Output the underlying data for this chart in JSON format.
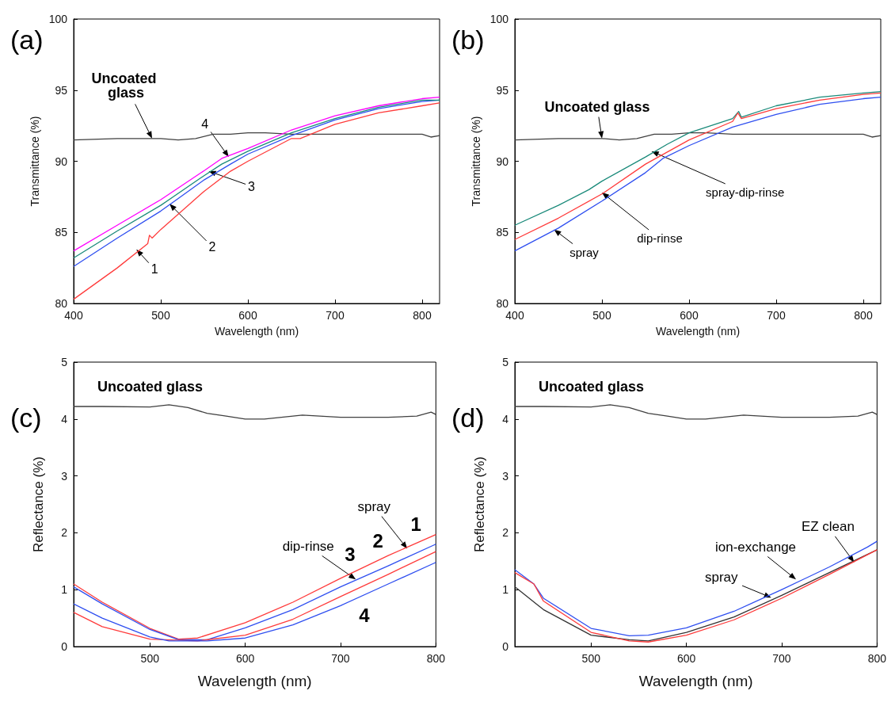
{
  "chart_data": [
    {
      "type": "line",
      "title": "(a)",
      "xlabel": "Wavelength (nm)",
      "ylabel": "Transmittance (%)",
      "xlim": [
        400,
        820
      ],
      "xticks": [
        400,
        500,
        600,
        700,
        800
      ],
      "ylim": [
        80,
        100
      ],
      "yticks": [
        80,
        85,
        90,
        95,
        100
      ],
      "marker": "none",
      "series": [
        {
          "color": "#404040",
          "x": [
            400,
            450,
            490,
            500,
            520,
            540,
            560,
            580,
            600,
            620,
            650,
            680,
            700,
            750,
            800,
            810,
            820
          ],
          "values": [
            91.5,
            91.6,
            91.6,
            91.6,
            91.5,
            91.6,
            91.9,
            91.9,
            92.0,
            92.0,
            91.9,
            91.9,
            91.9,
            91.9,
            91.9,
            91.7,
            91.8
          ]
        },
        {
          "color": "#ff3b3b",
          "x": [
            400,
            450,
            485,
            487,
            490,
            500,
            550,
            580,
            600,
            650,
            660,
            700,
            750,
            800,
            820
          ],
          "values": [
            80.3,
            82.5,
            84.2,
            84.8,
            84.6,
            85.2,
            87.9,
            89.3,
            90.0,
            91.6,
            91.6,
            92.6,
            93.4,
            93.9,
            94.1
          ]
        },
        {
          "color": "#2f4ff0",
          "x": [
            400,
            450,
            500,
            550,
            580,
            600,
            650,
            700,
            750,
            800,
            820
          ],
          "values": [
            82.6,
            84.6,
            86.5,
            88.7,
            89.8,
            90.5,
            91.8,
            92.9,
            93.7,
            94.2,
            94.3
          ]
        },
        {
          "color": "#1a8a7a",
          "x": [
            400,
            450,
            500,
            550,
            570,
            600,
            650,
            700,
            750,
            800,
            820
          ],
          "values": [
            83.2,
            85.1,
            86.9,
            89.0,
            89.8,
            90.7,
            92.0,
            93.0,
            93.8,
            94.3,
            94.3
          ]
        },
        {
          "color": "#ff00ff",
          "x": [
            400,
            450,
            500,
            550,
            570,
            600,
            650,
            700,
            750,
            800,
            820
          ],
          "values": [
            83.7,
            85.5,
            87.3,
            89.35,
            90.2,
            90.9,
            92.2,
            93.2,
            93.9,
            94.4,
            94.5
          ]
        }
      ],
      "annotations": [
        {
          "text": "Uncoated glass",
          "x": 490,
          "y": 91.6
        },
        {
          "text": "4",
          "x": 578,
          "y": 90.3
        },
        {
          "text": "3",
          "x": 555,
          "y": 89.3
        },
        {
          "text": "2",
          "x": 510,
          "y": 87.0
        },
        {
          "text": "1",
          "x": 472,
          "y": 83.8
        }
      ]
    },
    {
      "type": "line",
      "title": "(b)",
      "xlabel": "Wavelength (nm)",
      "ylabel": "Transmittance (%)",
      "xlim": [
        400,
        820
      ],
      "xticks": [
        400,
        500,
        600,
        700,
        800
      ],
      "ylim": [
        80,
        100
      ],
      "yticks": [
        80,
        85,
        90,
        95,
        100
      ],
      "marker": "none",
      "series": [
        {
          "color": "#404040",
          "x": [
            400,
            450,
            500,
            520,
            540,
            560,
            580,
            600,
            620,
            650,
            680,
            700,
            750,
            800,
            810,
            820
          ],
          "values": [
            91.5,
            91.6,
            91.6,
            91.5,
            91.6,
            91.9,
            91.9,
            92.0,
            92.0,
            91.9,
            91.9,
            91.9,
            91.9,
            91.9,
            91.7,
            91.8
          ]
        },
        {
          "color": "#1a8a7a",
          "x": [
            400,
            450,
            485,
            500,
            550,
            575,
            600,
            650,
            657,
            660,
            700,
            750,
            800,
            820
          ],
          "values": [
            85.5,
            86.9,
            88.0,
            88.6,
            90.3,
            91.2,
            92.0,
            93.0,
            93.5,
            93.1,
            93.9,
            94.5,
            94.8,
            94.9
          ]
        },
        {
          "color": "#ff3b3b",
          "x": [
            400,
            450,
            500,
            550,
            600,
            650,
            656,
            660,
            700,
            750,
            800,
            820
          ],
          "values": [
            84.5,
            86.0,
            87.7,
            89.8,
            91.5,
            92.8,
            93.4,
            93.0,
            93.7,
            94.3,
            94.7,
            94.8
          ]
        },
        {
          "color": "#2f4ff0",
          "x": [
            400,
            450,
            500,
            550,
            570,
            600,
            650,
            700,
            750,
            800,
            820
          ],
          "values": [
            83.7,
            85.3,
            87.2,
            89.2,
            90.2,
            91.1,
            92.4,
            93.3,
            94.0,
            94.4,
            94.5
          ]
        }
      ],
      "annotations": [
        {
          "text": "Uncoated glass",
          "x": 500,
          "y": 91.6
        },
        {
          "text": "spray-dip-rinse",
          "x": 557,
          "y": 90.7
        },
        {
          "text": "dip-rinse",
          "x": 500,
          "y": 87.8
        },
        {
          "text": "spray",
          "x": 445,
          "y": 85.2
        }
      ]
    },
    {
      "type": "line",
      "title": "(c)",
      "xlabel": "Wavelength (nm)",
      "ylabel": "Reflectance (%)",
      "xlim": [
        420,
        800
      ],
      "xticks": [
        500,
        600,
        700,
        800
      ],
      "ylim": [
        0,
        5
      ],
      "yticks": [
        0,
        1,
        2,
        3,
        4,
        5
      ],
      "marker": "none",
      "series": [
        {
          "color": "#404040",
          "x": [
            420,
            450,
            500,
            520,
            540,
            560,
            580,
            600,
            620,
            660,
            700,
            750,
            780,
            795,
            800
          ],
          "values": [
            4.22,
            4.22,
            4.21,
            4.25,
            4.2,
            4.1,
            4.05,
            4.0,
            4.0,
            4.07,
            4.03,
            4.03,
            4.05,
            4.12,
            4.08
          ]
        },
        {
          "color": "#ff3b3b",
          "x": [
            420,
            450,
            500,
            530,
            550,
            600,
            650,
            700,
            750,
            800
          ],
          "values": [
            1.1,
            0.78,
            0.32,
            0.13,
            0.15,
            0.42,
            0.78,
            1.2,
            1.6,
            1.97
          ]
        },
        {
          "color": "#2f4ff0",
          "x": [
            420,
            450,
            500,
            530,
            560,
            600,
            650,
            700,
            750,
            800
          ],
          "values": [
            1.05,
            0.75,
            0.3,
            0.12,
            0.12,
            0.33,
            0.65,
            1.05,
            1.42,
            1.8
          ]
        },
        {
          "color": "#ff3b3b",
          "x": [
            420,
            450,
            500,
            550,
            600,
            650,
            700,
            750,
            800
          ],
          "values": [
            0.6,
            0.35,
            0.13,
            0.1,
            0.2,
            0.48,
            0.88,
            1.27,
            1.67
          ]
        },
        {
          "color": "#2f4ff0",
          "x": [
            420,
            450,
            500,
            520,
            560,
            600,
            650,
            700,
            750,
            800
          ],
          "values": [
            0.75,
            0.5,
            0.17,
            0.1,
            0.1,
            0.15,
            0.38,
            0.72,
            1.1,
            1.48
          ]
        }
      ],
      "annotations": [
        "Uncoated glass",
        {
          "text": "spray",
          "x": 770,
          "y": 1.72
        },
        {
          "text": "dip-rinse",
          "x": 716,
          "y": 1.18
        },
        {
          "text": "1",
          "x": 790,
          "y": 1.93
        },
        {
          "text": "2",
          "x": 750,
          "y": 1.27
        },
        {
          "text": "3",
          "x": 690,
          "y": 1.0
        },
        {
          "text": "4",
          "x": 720,
          "y": 0.8
        }
      ]
    },
    {
      "type": "line",
      "title": "(d)",
      "xlabel": "Wavelength (nm)",
      "ylabel": "Reflectance (%)",
      "xlim": [
        420,
        800
      ],
      "xticks": [
        500,
        600,
        700,
        800
      ],
      "ylim": [
        0,
        5
      ],
      "yticks": [
        0,
        1,
        2,
        3,
        4,
        5
      ],
      "marker": "none",
      "series": [
        {
          "color": "#404040",
          "x": [
            420,
            450,
            500,
            520,
            540,
            560,
            580,
            600,
            620,
            660,
            700,
            750,
            780,
            795,
            800
          ],
          "values": [
            4.22,
            4.22,
            4.21,
            4.25,
            4.2,
            4.1,
            4.05,
            4.0,
            4.0,
            4.07,
            4.03,
            4.03,
            4.05,
            4.12,
            4.08
          ]
        },
        {
          "color": "#2f4ff0",
          "x": [
            420,
            440,
            450,
            500,
            540,
            560,
            600,
            650,
            700,
            750,
            790,
            800
          ],
          "values": [
            1.35,
            1.1,
            0.85,
            0.32,
            0.19,
            0.2,
            0.33,
            0.62,
            1.0,
            1.4,
            1.75,
            1.85
          ]
        },
        {
          "color": "#333333",
          "x": [
            420,
            450,
            500,
            540,
            560,
            600,
            650,
            700,
            750,
            800
          ],
          "values": [
            1.05,
            0.65,
            0.2,
            0.12,
            0.1,
            0.25,
            0.52,
            0.9,
            1.3,
            1.7
          ]
        },
        {
          "color": "#ff3b3b",
          "x": [
            420,
            440,
            450,
            500,
            540,
            560,
            600,
            650,
            700,
            750,
            800
          ],
          "values": [
            1.3,
            1.1,
            0.8,
            0.25,
            0.1,
            0.08,
            0.2,
            0.47,
            0.85,
            1.27,
            1.7
          ]
        }
      ],
      "annotations": [
        "Uncoated glass",
        {
          "text": "EZ clean",
          "x": 776,
          "y": 1.48
        },
        {
          "text": "ion-exchange",
          "x": 715,
          "y": 1.18
        },
        {
          "text": "spray",
          "x": 689,
          "y": 0.86
        }
      ]
    }
  ]
}
